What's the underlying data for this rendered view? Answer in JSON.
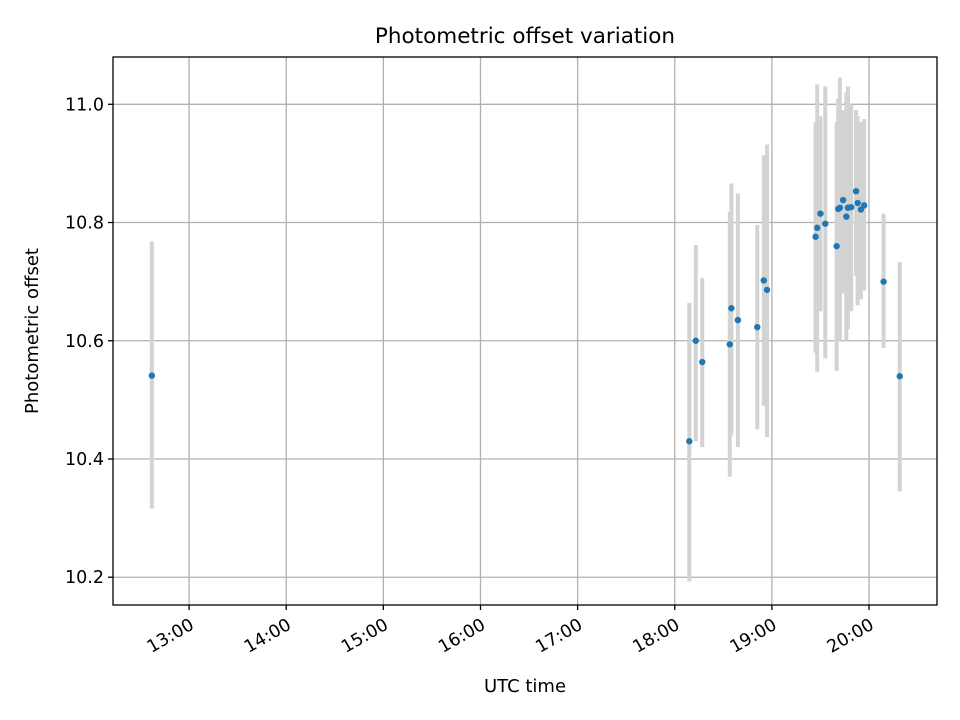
{
  "chart_data": {
    "type": "scatter",
    "title": "Photometric offset variation",
    "xlabel": "UTC time",
    "ylabel": "Photometric offset",
    "x_tick_labels": [
      "13:00",
      "14:00",
      "15:00",
      "16:00",
      "17:00",
      "18:00",
      "19:00",
      "20:00"
    ],
    "y_tick_labels": [
      "10.2",
      "10.4",
      "10.6",
      "10.8",
      "11.0"
    ],
    "xlim": [
      "12:13",
      "20:42"
    ],
    "ylim": [
      10.153,
      11.08
    ],
    "grid": true,
    "marker_color": "#1f77b4",
    "errorbar_color": "#d3d3d3",
    "points": [
      {
        "x": "12:37",
        "y": 10.541,
        "lo": 10.316,
        "hi": 10.768
      },
      {
        "x": "18:09",
        "y": 10.43,
        "lo": 10.193,
        "hi": 10.664
      },
      {
        "x": "18:13",
        "y": 10.6,
        "lo": 10.43,
        "hi": 10.762
      },
      {
        "x": "18:17",
        "y": 10.564,
        "lo": 10.42,
        "hi": 10.706
      },
      {
        "x": "18:34",
        "y": 10.594,
        "lo": 10.37,
        "hi": 10.818
      },
      {
        "x": "18:35",
        "y": 10.655,
        "lo": 10.44,
        "hi": 10.866
      },
      {
        "x": "18:39",
        "y": 10.635,
        "lo": 10.42,
        "hi": 10.849
      },
      {
        "x": "18:51",
        "y": 10.623,
        "lo": 10.45,
        "hi": 10.796
      },
      {
        "x": "18:55",
        "y": 10.702,
        "lo": 10.49,
        "hi": 10.914
      },
      {
        "x": "18:57",
        "y": 10.686,
        "lo": 10.437,
        "hi": 10.932
      },
      {
        "x": "19:27",
        "y": 10.776,
        "lo": 10.58,
        "hi": 10.97
      },
      {
        "x": "19:28",
        "y": 10.791,
        "lo": 10.547,
        "hi": 11.034
      },
      {
        "x": "19:30",
        "y": 10.815,
        "lo": 10.65,
        "hi": 10.98
      },
      {
        "x": "19:33",
        "y": 10.798,
        "lo": 10.57,
        "hi": 11.03
      },
      {
        "x": "19:40",
        "y": 10.76,
        "lo": 10.549,
        "hi": 10.97
      },
      {
        "x": "19:41",
        "y": 10.823,
        "lo": 10.63,
        "hi": 11.01
      },
      {
        "x": "19:42",
        "y": 10.825,
        "lo": 10.6,
        "hi": 11.045
      },
      {
        "x": "19:44",
        "y": 10.838,
        "lo": 10.68,
        "hi": 10.99
      },
      {
        "x": "19:46",
        "y": 10.81,
        "lo": 10.6,
        "hi": 11.02
      },
      {
        "x": "19:47",
        "y": 10.825,
        "lo": 10.62,
        "hi": 11.03
      },
      {
        "x": "19:49",
        "y": 10.826,
        "lo": 10.65,
        "hi": 11.0
      },
      {
        "x": "19:52",
        "y": 10.853,
        "lo": 10.71,
        "hi": 10.99
      },
      {
        "x": "19:53",
        "y": 10.833,
        "lo": 10.66,
        "hi": 10.98
      },
      {
        "x": "19:55",
        "y": 10.822,
        "lo": 10.67,
        "hi": 10.97
      },
      {
        "x": "19:57",
        "y": 10.829,
        "lo": 10.685,
        "hi": 10.975
      },
      {
        "x": "20:09",
        "y": 10.7,
        "lo": 10.588,
        "hi": 10.815
      },
      {
        "x": "20:19",
        "y": 10.54,
        "lo": 10.345,
        "hi": 10.733
      }
    ]
  }
}
